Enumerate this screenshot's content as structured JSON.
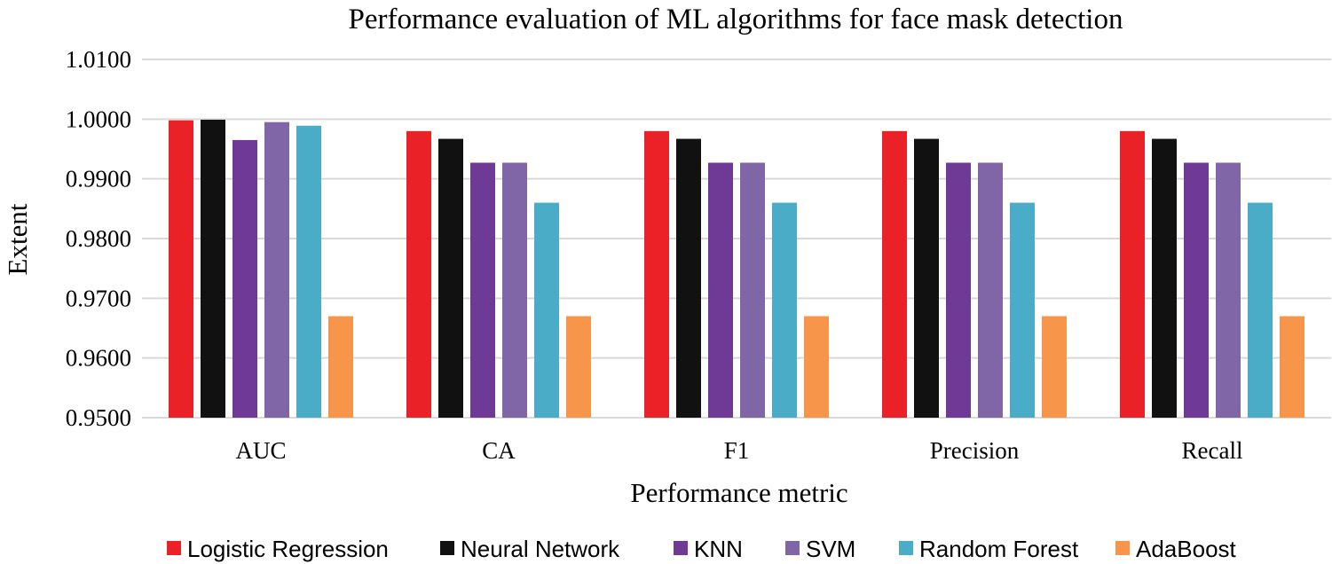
{
  "chart_data": {
    "type": "bar",
    "title": "Performance evaluation of ML algorithms for face mask detection",
    "xlabel": "Performance metric",
    "ylabel": "Extent",
    "categories": [
      "AUC",
      "CA",
      "F1",
      "Precision",
      "Recall"
    ],
    "ylim": [
      0.95,
      1.01
    ],
    "yticks": [
      0.95,
      0.96,
      0.97,
      0.98,
      0.99,
      1.0,
      1.01
    ],
    "ytick_labels": [
      "0.9500",
      "0.9600",
      "0.9700",
      "0.9800",
      "0.9900",
      "1.0000",
      "1.0100"
    ],
    "grid": true,
    "legend_position": "bottom",
    "series": [
      {
        "name": "Logistic Regression",
        "color": "#ea2127",
        "values": [
          0.9998,
          0.998,
          0.998,
          0.998,
          0.998
        ]
      },
      {
        "name": "Neural Network",
        "color": "#111111",
        "values": [
          0.9999,
          0.9967,
          0.9967,
          0.9967,
          0.9967
        ]
      },
      {
        "name": "KNN",
        "color": "#6f3996",
        "values": [
          0.9965,
          0.9927,
          0.9927,
          0.9927,
          0.9927
        ]
      },
      {
        "name": "SVM",
        "color": "#8066a6",
        "values": [
          0.9995,
          0.9927,
          0.9927,
          0.9927,
          0.9927
        ]
      },
      {
        "name": "Random Forest",
        "color": "#4aacc6",
        "values": [
          0.9989,
          0.986,
          0.986,
          0.986,
          0.986
        ]
      },
      {
        "name": "AdaBoost",
        "color": "#f7964a",
        "values": [
          0.967,
          0.967,
          0.967,
          0.967,
          0.967
        ]
      }
    ]
  }
}
